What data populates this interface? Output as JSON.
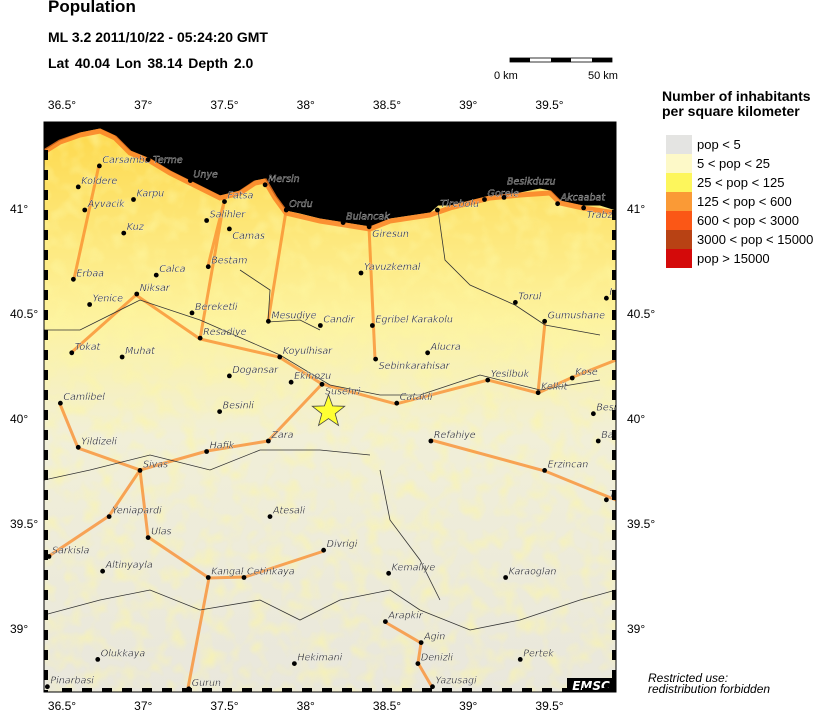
{
  "header": {
    "title": "Population",
    "event": "ML 3.2  2011/10/22 - 05:24:20 GMT",
    "location": "Lat 40.04    Lon  38.14    Depth  2.0"
  },
  "scale_bar": {
    "start_label": "0 km",
    "end_label": "50 km"
  },
  "map": {
    "extent": {
      "lon_min": 36.39,
      "lon_max": 39.91,
      "lat_min": 38.7,
      "lat_max": 41.42
    },
    "lon_ticks": [
      {
        "value": 36.5,
        "label": "36.5°"
      },
      {
        "value": 37,
        "label": "37°"
      },
      {
        "value": 37.5,
        "label": "37.5°"
      },
      {
        "value": 38,
        "label": "38°"
      },
      {
        "value": 38.5,
        "label": "38.5°"
      },
      {
        "value": 39,
        "label": "39°"
      },
      {
        "value": 39.5,
        "label": "39.5°"
      }
    ],
    "lat_ticks": [
      {
        "value": 41,
        "label": "41°"
      },
      {
        "value": 40.5,
        "label": "40.5°"
      },
      {
        "value": 40,
        "label": "40°"
      },
      {
        "value": 39.5,
        "label": "39.5°"
      },
      {
        "value": 39,
        "label": "39°"
      }
    ],
    "epicenter": {
      "lat": 40.04,
      "lon": 38.14,
      "marker": "star",
      "color": "#ffff33"
    },
    "sea_color": "#7fc3f5",
    "cities": [
      {
        "name": "Carsamba",
        "lon": 36.73,
        "lat": 41.21
      },
      {
        "name": "Terme",
        "lon": 37.03,
        "lat": 41.24
      },
      {
        "name": "Koldere",
        "lon": 36.6,
        "lat": 41.11
      },
      {
        "name": "Ayvacik",
        "lon": 36.64,
        "lat": 41.0
      },
      {
        "name": "Karpu",
        "lon": 36.94,
        "lat": 41.05
      },
      {
        "name": "Unye",
        "lon": 37.29,
        "lat": 41.14
      },
      {
        "name": "Mersin",
        "lon": 37.75,
        "lat": 41.12
      },
      {
        "name": "Fatsa",
        "lon": 37.5,
        "lat": 41.04
      },
      {
        "name": "Ordu",
        "lon": 37.88,
        "lat": 41.0
      },
      {
        "name": "Salihler",
        "lon": 37.39,
        "lat": 40.95
      },
      {
        "name": "Camas",
        "lon": 37.53,
        "lat": 40.91
      },
      {
        "name": "Kuz",
        "lon": 36.88,
        "lat": 40.89
      },
      {
        "name": "Bestam",
        "lon": 37.4,
        "lat": 40.73
      },
      {
        "name": "Calca",
        "lon": 37.08,
        "lat": 40.69
      },
      {
        "name": "Erbaa",
        "lon": 36.57,
        "lat": 40.67
      },
      {
        "name": "Niksar",
        "lon": 36.96,
        "lat": 40.6
      },
      {
        "name": "Yenice",
        "lon": 36.67,
        "lat": 40.55
      },
      {
        "name": "Bereketli",
        "lon": 37.3,
        "lat": 40.51
      },
      {
        "name": "Mesudiye",
        "lon": 37.77,
        "lat": 40.47
      },
      {
        "name": "Candir",
        "lon": 38.09,
        "lat": 40.45
      },
      {
        "name": "Resadiye",
        "lon": 37.35,
        "lat": 40.39
      },
      {
        "name": "Bulancak",
        "lon": 38.23,
        "lat": 40.94
      },
      {
        "name": "Giresun",
        "lon": 38.39,
        "lat": 40.92
      },
      {
        "name": "Tirebolu",
        "lon": 38.81,
        "lat": 41.0
      },
      {
        "name": "Gorele",
        "lon": 39.1,
        "lat": 41.05
      },
      {
        "name": "Besikduzu",
        "lon": 39.22,
        "lat": 41.06
      },
      {
        "name": "Akcaabat",
        "lon": 39.55,
        "lat": 41.03
      },
      {
        "name": "Trabzon",
        "lon": 39.71,
        "lat": 41.01
      },
      {
        "name": "Yavuzkemal",
        "lon": 38.34,
        "lat": 40.7
      },
      {
        "name": "Torul",
        "lon": 39.29,
        "lat": 40.56
      },
      {
        "name": "Gumushane",
        "lon": 39.47,
        "lat": 40.47
      },
      {
        "name": "Ir",
        "lon": 39.85,
        "lat": 40.58
      },
      {
        "name": "Egribel Karakolu",
        "lon": 38.41,
        "lat": 40.45
      },
      {
        "name": "Alucra",
        "lon": 38.75,
        "lat": 40.32
      },
      {
        "name": "Sebinkarahisar",
        "lon": 38.43,
        "lat": 40.29
      },
      {
        "name": "Tokat",
        "lon": 36.56,
        "lat": 40.32
      },
      {
        "name": "Muhat",
        "lon": 36.87,
        "lat": 40.3
      },
      {
        "name": "Koyulhisar",
        "lon": 37.84,
        "lat": 40.3
      },
      {
        "name": "Dogansar",
        "lon": 37.53,
        "lat": 40.21
      },
      {
        "name": "Ekinozu",
        "lon": 37.91,
        "lat": 40.18
      },
      {
        "name": "Susehri",
        "lon": 38.1,
        "lat": 40.17
      },
      {
        "name": "Yesilbuk",
        "lon": 39.12,
        "lat": 40.19
      },
      {
        "name": "Kose",
        "lon": 39.64,
        "lat": 40.2
      },
      {
        "name": "Kelkit",
        "lon": 39.43,
        "lat": 40.13
      },
      {
        "name": "Camlibel",
        "lon": 36.49,
        "lat": 40.08
      },
      {
        "name": "Besinli",
        "lon": 37.47,
        "lat": 40.04
      },
      {
        "name": "Catakli",
        "lon": 38.56,
        "lat": 40.08
      },
      {
        "name": "Besp",
        "lon": 39.77,
        "lat": 40.03
      },
      {
        "name": "Ba",
        "lon": 39.8,
        "lat": 39.9
      },
      {
        "name": "Yildizeli",
        "lon": 36.6,
        "lat": 39.87
      },
      {
        "name": "Hafik",
        "lon": 37.39,
        "lat": 39.85
      },
      {
        "name": "Zara",
        "lon": 37.77,
        "lat": 39.9
      },
      {
        "name": "Refahiye",
        "lon": 38.77,
        "lat": 39.9
      },
      {
        "name": "Sivas",
        "lon": 36.98,
        "lat": 39.76
      },
      {
        "name": "Erzincan",
        "lon": 39.47,
        "lat": 39.76
      },
      {
        "name": "Te",
        "lon": 39.85,
        "lat": 39.62
      },
      {
        "name": "Yeniapardi",
        "lon": 36.79,
        "lat": 39.54
      },
      {
        "name": "Ulas",
        "lon": 37.03,
        "lat": 39.44
      },
      {
        "name": "Atesali",
        "lon": 37.78,
        "lat": 39.54
      },
      {
        "name": "Sarkisla",
        "lon": 36.42,
        "lat": 39.35
      },
      {
        "name": "Divrigi",
        "lon": 38.11,
        "lat": 39.38
      },
      {
        "name": "Altinyayla",
        "lon": 36.75,
        "lat": 39.28
      },
      {
        "name": "Kangal",
        "lon": 37.4,
        "lat": 39.25
      },
      {
        "name": "Cetinkaya",
        "lon": 37.62,
        "lat": 39.25
      },
      {
        "name": "Kemaliye",
        "lon": 38.51,
        "lat": 39.27
      },
      {
        "name": "Karaoglan",
        "lon": 39.23,
        "lat": 39.25
      },
      {
        "name": "Arapkir",
        "lon": 38.49,
        "lat": 39.04
      },
      {
        "name": "Agin",
        "lon": 38.71,
        "lat": 38.94
      },
      {
        "name": "Olukkaya",
        "lon": 36.72,
        "lat": 38.86
      },
      {
        "name": "Hekimani",
        "lon": 37.93,
        "lat": 38.84
      },
      {
        "name": "Denizli",
        "lon": 38.69,
        "lat": 38.84
      },
      {
        "name": "Pertek",
        "lon": 39.32,
        "lat": 38.86
      },
      {
        "name": "Pinarbasi",
        "lon": 36.41,
        "lat": 38.73
      },
      {
        "name": "Gurun",
        "lon": 37.28,
        "lat": 38.72
      },
      {
        "name": "Yazusagi",
        "lon": 38.78,
        "lat": 38.73
      }
    ],
    "logo": "EMSC"
  },
  "legend": {
    "title_line1": "Number of inhabitants",
    "title_line2": "per square kilometer",
    "items": [
      {
        "label": "pop < 5",
        "color": "#e4e4e2"
      },
      {
        "label": "5 < pop < 25",
        "color": "#fdf9c8"
      },
      {
        "label": "25 < pop < 125",
        "color": "#fdf65c"
      },
      {
        "label": "125 < pop < 600",
        "color": "#fa9a36"
      },
      {
        "label": "600 < pop < 3000",
        "color": "#fb5716"
      },
      {
        "label": "3000 < pop < 15000",
        "color": "#b84214"
      },
      {
        "label": "pop > 15000",
        "color": "#d40a0a"
      }
    ]
  },
  "footer": {
    "restricted_line1": "Restricted use:",
    "restricted_line2": "redistribution forbidden"
  }
}
